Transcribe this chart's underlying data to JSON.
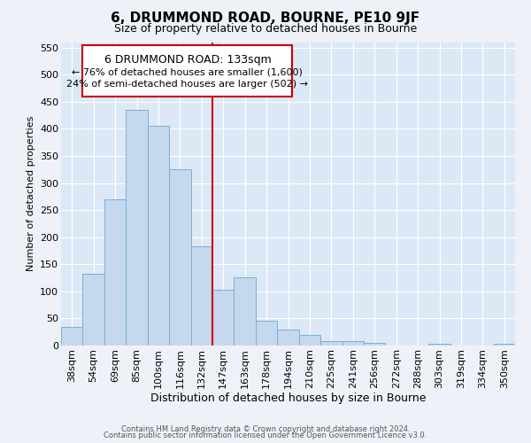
{
  "title": "6, DRUMMOND ROAD, BOURNE, PE10 9JF",
  "subtitle": "Size of property relative to detached houses in Bourne",
  "xlabel": "Distribution of detached houses by size in Bourne",
  "ylabel": "Number of detached properties",
  "bar_labels": [
    "38sqm",
    "54sqm",
    "69sqm",
    "85sqm",
    "100sqm",
    "116sqm",
    "132sqm",
    "147sqm",
    "163sqm",
    "178sqm",
    "194sqm",
    "210sqm",
    "225sqm",
    "241sqm",
    "256sqm",
    "272sqm",
    "288sqm",
    "303sqm",
    "319sqm",
    "334sqm",
    "350sqm"
  ],
  "bar_heights": [
    35,
    133,
    270,
    435,
    405,
    325,
    183,
    103,
    126,
    46,
    30,
    20,
    8,
    8,
    5,
    0,
    0,
    3,
    0,
    0,
    3
  ],
  "bar_color": "#c5d8ee",
  "bar_edge_color": "#7aafd4",
  "vline_x_index": 6,
  "vline_color": "#cc0000",
  "annotation_title": "6 DRUMMOND ROAD: 133sqm",
  "annotation_line1": "← 76% of detached houses are smaller (1,600)",
  "annotation_line2": "24% of semi-detached houses are larger (502) →",
  "ylim": [
    0,
    560
  ],
  "yticks": [
    0,
    50,
    100,
    150,
    200,
    250,
    300,
    350,
    400,
    450,
    500,
    550
  ],
  "footer1": "Contains HM Land Registry data © Crown copyright and database right 2024.",
  "footer2": "Contains public sector information licensed under the Open Government Licence v3.0.",
  "bg_color": "#eef2f8",
  "plot_bg_color": "#dce8f5",
  "grid_color": "#ffffff",
  "title_fontsize": 11,
  "subtitle_fontsize": 9,
  "xlabel_fontsize": 9,
  "ylabel_fontsize": 8,
  "tick_fontsize": 8,
  "footer_fontsize": 6,
  "ann_title_fontsize": 9,
  "ann_text_fontsize": 8
}
